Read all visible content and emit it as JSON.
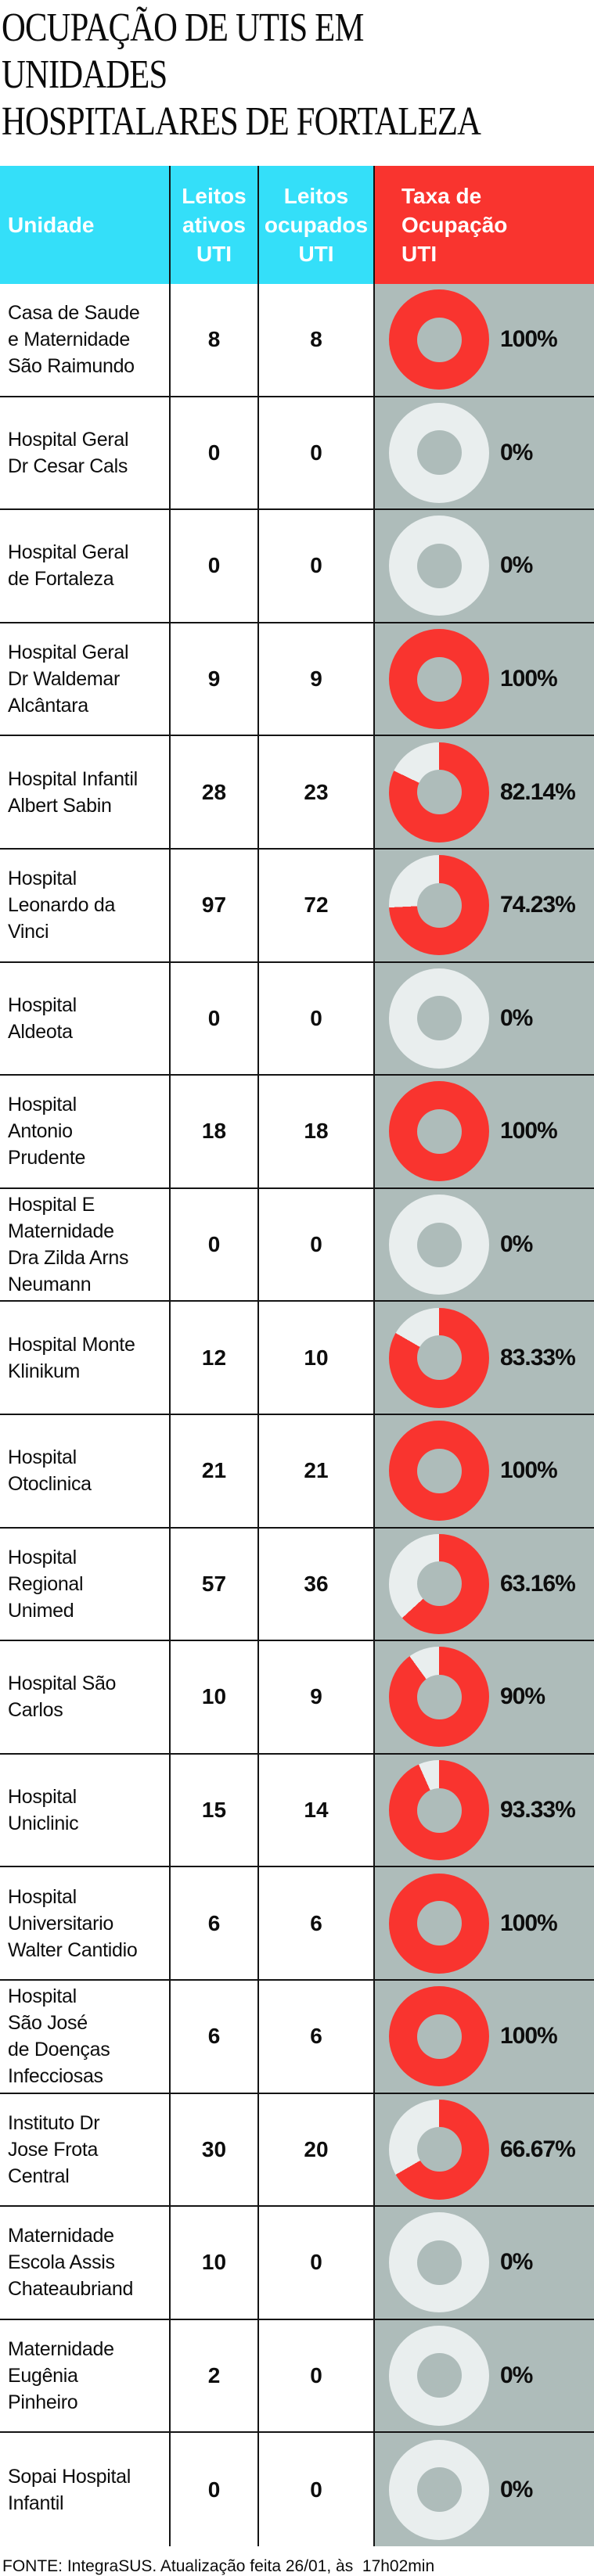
{
  "title": "OCUPAÇÃO DE UTIS EM UNIDADES\nHOSPITALARES DE FORTALEZA",
  "header": {
    "unidade": "Unidade",
    "leitos_ativos": "Leitos\nativos\nUTI",
    "leitos_ocupados": "Leitos\nocupados\nUTI",
    "taxa": "Taxa de\nOcupação\nUTI"
  },
  "rows": [
    {
      "name": "Casa de Saude\ne Maternidade\nSão Raimundo",
      "ativos": "8",
      "ocupados": "8",
      "taxa": "100%"
    },
    {
      "name": "Hospital Geral\nDr Cesar Cals",
      "ativos": "0",
      "ocupados": "0",
      "taxa": "0%"
    },
    {
      "name": "Hospital Geral\nde Fortaleza",
      "ativos": "0",
      "ocupados": "0",
      "taxa": "0%"
    },
    {
      "name": "Hospital Geral\nDr Waldemar\nAlcântara",
      "ativos": "9",
      "ocupados": "9",
      "taxa": "100%"
    },
    {
      "name": "Hospital Infantil\nAlbert Sabin",
      "ativos": "28",
      "ocupados": "23",
      "taxa": "82.14%"
    },
    {
      "name": "Hospital\nLeonardo da\nVinci",
      "ativos": "97",
      "ocupados": "72",
      "taxa": "74.23%"
    },
    {
      "name": "Hospital\nAldeota",
      "ativos": "0",
      "ocupados": "0",
      "taxa": "0%"
    },
    {
      "name": "Hospital\nAntonio\nPrudente",
      "ativos": "18",
      "ocupados": "18",
      "taxa": "100%"
    },
    {
      "name": "Hospital E\nMaternidade\nDra Zilda Arns\nNeumann",
      "ativos": "0",
      "ocupados": "0",
      "taxa": "0%"
    },
    {
      "name": "Hospital Monte\nKlinikum",
      "ativos": "12",
      "ocupados": "10",
      "taxa": "83.33%"
    },
    {
      "name": "Hospital\nOtoclinica",
      "ativos": "21",
      "ocupados": "21",
      "taxa": "100%"
    },
    {
      "name": "Hospital\nRegional\nUnimed",
      "ativos": "57",
      "ocupados": "36",
      "taxa": "63.16%"
    },
    {
      "name": "Hospital São\nCarlos",
      "ativos": "10",
      "ocupados": "9",
      "taxa": "90%"
    },
    {
      "name": "Hospital\nUniclinic",
      "ativos": "15",
      "ocupados": "14",
      "taxa": "93.33%"
    },
    {
      "name": "Hospital\nUniversitario\nWalter Cantidio",
      "ativos": "6",
      "ocupados": "6",
      "taxa": "100%"
    },
    {
      "name": "Hospital\nSão José\nde Doenças\nInfecciosas",
      "ativos": "6",
      "ocupados": "6",
      "taxa": "100%"
    },
    {
      "name": "Instituto Dr\nJose Frota\nCentral",
      "ativos": "30",
      "ocupados": "20",
      "taxa": "66.67%"
    },
    {
      "name": "Maternidade\nEscola Assis\nChateaubriand",
      "ativos": "10",
      "ocupados": "0",
      "taxa": "0%"
    },
    {
      "name": "Maternidade\nEugênia\nPinheiro",
      "ativos": "2",
      "ocupados": "0",
      "taxa": "0%"
    },
    {
      "name": "Sopai Hospital\nInfantil",
      "ativos": "0",
      "ocupados": "0",
      "taxa": "0%"
    }
  ],
  "footer": "FONTE: IntegraSUS. Atualização feita 26/01, às  17h02min",
  "colors": {
    "header_cyan": "#34dff9",
    "header_red": "#f9342f",
    "donut_red": "#f9342f",
    "donut_empty": "#e9eeee",
    "taxa_bg": "#aebcba",
    "border": "#141414",
    "text": "#0d0d0d"
  },
  "chart_data": {
    "type": "table",
    "title": "OCUPAÇÃO DE UTIS EM UNIDADES HOSPITALARES DE FORTALEZA",
    "columns": [
      "Unidade",
      "Leitos ativos UTI",
      "Leitos ocupados UTI",
      "Taxa de Ocupação UTI"
    ],
    "rows": [
      [
        "Casa de Saude e Maternidade São Raimundo",
        8,
        8,
        "100%"
      ],
      [
        "Hospital Geral Dr Cesar Cals",
        0,
        0,
        "0%"
      ],
      [
        "Hospital Geral de Fortaleza",
        0,
        0,
        "0%"
      ],
      [
        "Hospital Geral Dr Waldemar Alcântara",
        9,
        9,
        "100%"
      ],
      [
        "Hospital Infantil Albert Sabin",
        28,
        23,
        "82.14%"
      ],
      [
        "Hospital Leonardo da Vinci",
        97,
        72,
        "74.23%"
      ],
      [
        "Hospital Aldeota",
        0,
        0,
        "0%"
      ],
      [
        "Hospital Antonio Prudente",
        18,
        18,
        "100%"
      ],
      [
        "Hospital E Maternidade Dra Zilda Arns Neumann",
        0,
        0,
        "0%"
      ],
      [
        "Hospital Monte Klinikum",
        12,
        10,
        "83.33%"
      ],
      [
        "Hospital Otoclinica",
        21,
        21,
        "100%"
      ],
      [
        "Hospital Regional Unimed",
        57,
        36,
        "63.16%"
      ],
      [
        "Hospital São Carlos",
        10,
        9,
        "90%"
      ],
      [
        "Hospital Uniclinic",
        15,
        14,
        "93.33%"
      ],
      [
        "Hospital Universitario Walter Cantidio",
        6,
        6,
        "100%"
      ],
      [
        "Hospital São José de Doenças Infecciosas",
        6,
        6,
        "100%"
      ],
      [
        "Instituto Dr Jose Frota Central",
        30,
        20,
        "66.67%"
      ],
      [
        "Maternidade Escola Assis Chateaubriand",
        10,
        0,
        "0%"
      ],
      [
        "Maternidade Eugênia Pinheiro",
        2,
        0,
        "0%"
      ],
      [
        "Sopai Hospital Infantil",
        0,
        0,
        "0%"
      ]
    ],
    "donuts_percent": [
      100,
      0,
      0,
      100,
      82.14,
      74.23,
      0,
      100,
      0,
      83.33,
      100,
      63.16,
      90,
      93.33,
      100,
      100,
      66.67,
      0,
      0,
      0
    ],
    "donut_filled_color": "#f9342f",
    "donut_empty_color": "#e9eeee",
    "donut_start_angle": "top",
    "donut_direction": "clockwise"
  }
}
